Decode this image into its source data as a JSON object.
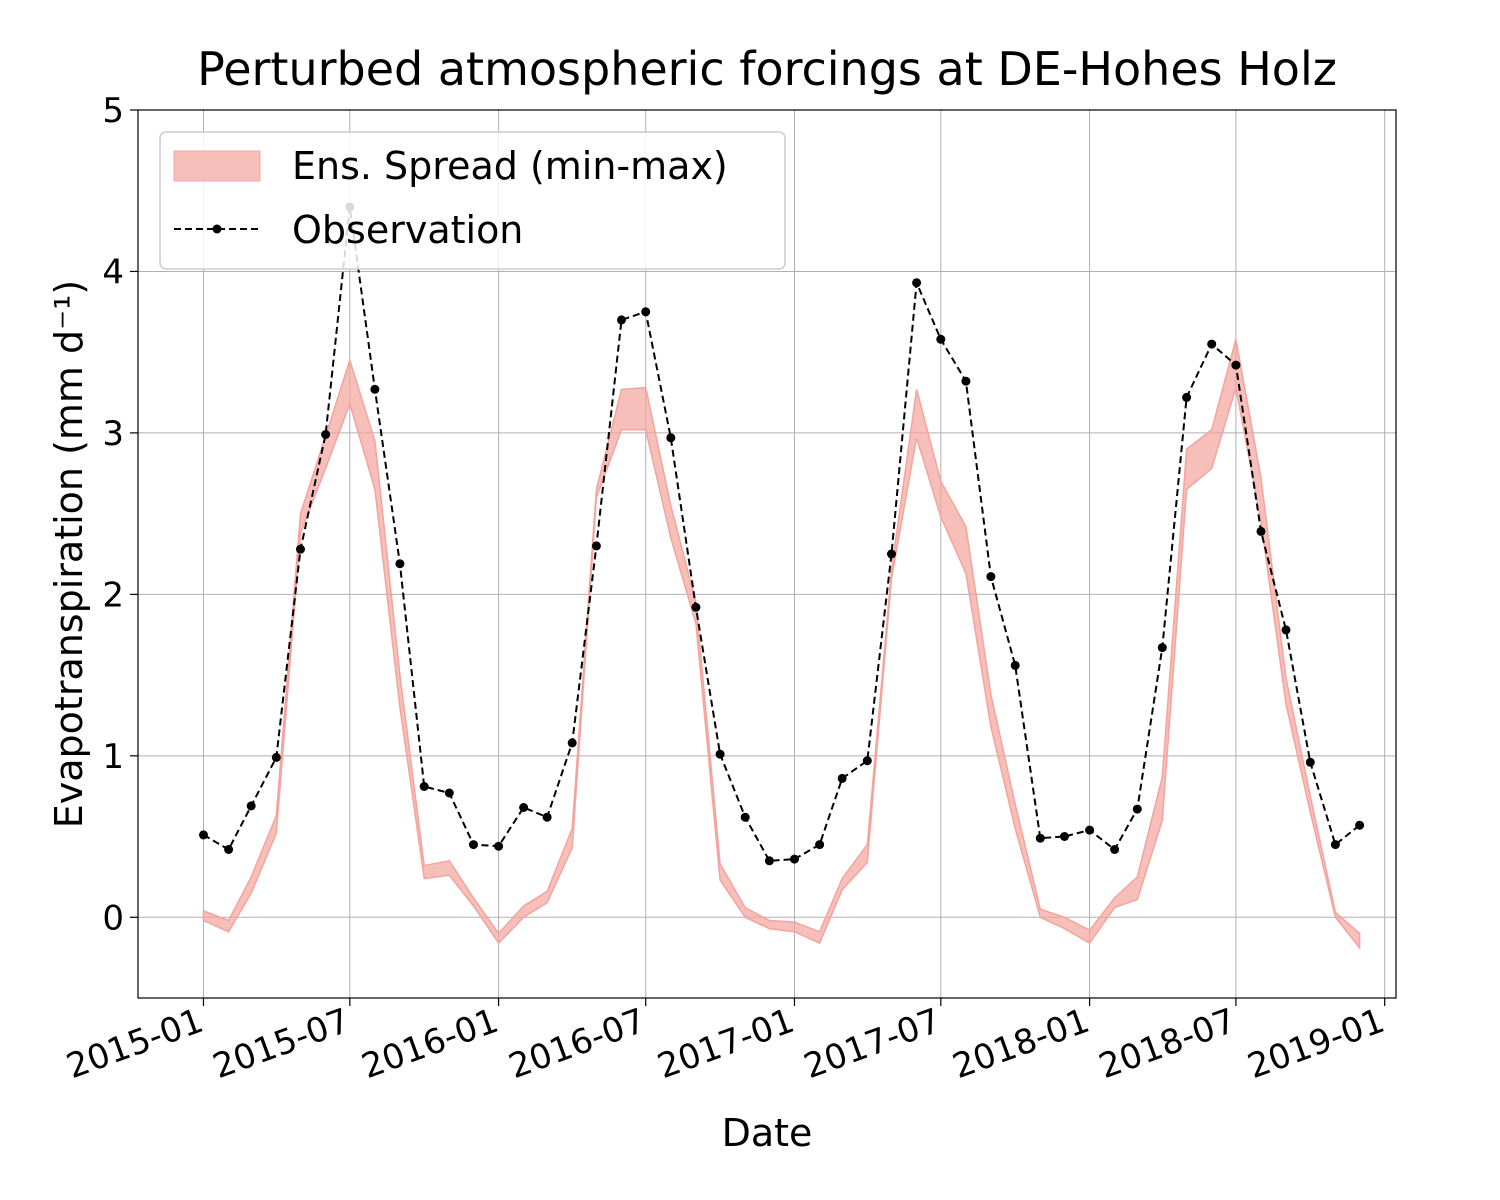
{
  "chart_data": {
    "type": "line",
    "title": "Perturbed atmospheric forcings at DE-Hohes Holz",
    "xlabel": "Date",
    "ylabel": "Evapotranspiration  (mm d⁻¹)",
    "xlim": [
      "2014-10-12",
      "2019-01-15"
    ],
    "ylim": [
      -0.5,
      5
    ],
    "yticks": [
      0,
      1,
      2,
      3,
      4,
      5
    ],
    "xticks": [
      "2015-01",
      "2015-07",
      "2016-01",
      "2016-07",
      "2017-01",
      "2017-07",
      "2018-01",
      "2018-07",
      "2019-01"
    ],
    "xtick_dates": [
      "2015-01-01",
      "2015-07-01",
      "2016-01-01",
      "2016-07-01",
      "2017-01-01",
      "2017-07-01",
      "2018-01-01",
      "2018-07-01",
      "2019-01-01"
    ],
    "grid": true,
    "legend": {
      "position": "top-left"
    },
    "x": [
      "2015-01-01",
      "2015-02-01",
      "2015-03-01",
      "2015-04-01",
      "2015-05-01",
      "2015-06-01",
      "2015-07-01",
      "2015-08-01",
      "2015-09-01",
      "2015-10-01",
      "2015-11-01",
      "2015-12-01",
      "2016-01-01",
      "2016-02-01",
      "2016-03-01",
      "2016-04-01",
      "2016-05-01",
      "2016-06-01",
      "2016-07-01",
      "2016-08-01",
      "2016-09-01",
      "2016-10-01",
      "2016-11-01",
      "2016-12-01",
      "2017-01-01",
      "2017-02-01",
      "2017-03-01",
      "2017-04-01",
      "2017-05-01",
      "2017-06-01",
      "2017-07-01",
      "2017-08-01",
      "2017-09-01",
      "2017-10-01",
      "2017-11-01",
      "2017-12-01",
      "2018-01-01",
      "2018-02-01",
      "2018-03-01",
      "2018-04-01",
      "2018-05-01",
      "2018-06-01",
      "2018-07-01",
      "2018-08-01",
      "2018-09-01",
      "2018-10-01",
      "2018-11-01",
      "2018-12-01"
    ],
    "series": [
      {
        "name": "Ens. Spread (min-max)",
        "kind": "band",
        "color": "#f4a49c",
        "min": [
          -0.02,
          -0.09,
          0.15,
          0.52,
          2.38,
          2.78,
          3.18,
          2.65,
          1.3,
          0.24,
          0.26,
          0.07,
          -0.16,
          0.0,
          0.09,
          0.43,
          2.6,
          3.02,
          3.02,
          2.35,
          1.82,
          0.23,
          0.0,
          -0.07,
          -0.09,
          -0.16,
          0.17,
          0.34,
          2.1,
          2.97,
          2.48,
          2.13,
          1.18,
          0.55,
          0.0,
          -0.07,
          -0.16,
          0.06,
          0.11,
          0.6,
          2.65,
          2.78,
          3.28,
          2.45,
          1.32,
          0.65,
          0.0,
          -0.19
        ],
        "max": [
          0.04,
          -0.02,
          0.25,
          0.63,
          2.5,
          2.98,
          3.45,
          2.95,
          1.5,
          0.32,
          0.35,
          0.12,
          -0.1,
          0.07,
          0.16,
          0.55,
          2.65,
          3.27,
          3.28,
          2.55,
          1.95,
          0.33,
          0.06,
          -0.02,
          -0.03,
          -0.09,
          0.24,
          0.45,
          2.15,
          3.27,
          2.7,
          2.42,
          1.38,
          0.7,
          0.05,
          0.0,
          -0.08,
          0.12,
          0.25,
          0.87,
          2.9,
          3.02,
          3.58,
          2.72,
          1.48,
          0.75,
          0.03,
          -0.1
        ]
      },
      {
        "name": "Observation",
        "kind": "line",
        "color": "#000000",
        "values": [
          0.51,
          0.42,
          0.69,
          0.99,
          2.28,
          2.99,
          4.4,
          3.27,
          2.19,
          0.81,
          0.77,
          0.45,
          0.44,
          0.68,
          0.62,
          1.08,
          2.3,
          3.7,
          3.75,
          2.97,
          1.92,
          1.01,
          0.62,
          0.35,
          0.36,
          0.45,
          0.86,
          0.97,
          2.25,
          3.93,
          3.58,
          3.32,
          2.11,
          1.56,
          0.49,
          0.5,
          0.54,
          0.42,
          0.67,
          1.67,
          3.22,
          3.55,
          3.42,
          2.39,
          1.78,
          0.96,
          0.45,
          0.57
        ]
      }
    ]
  }
}
